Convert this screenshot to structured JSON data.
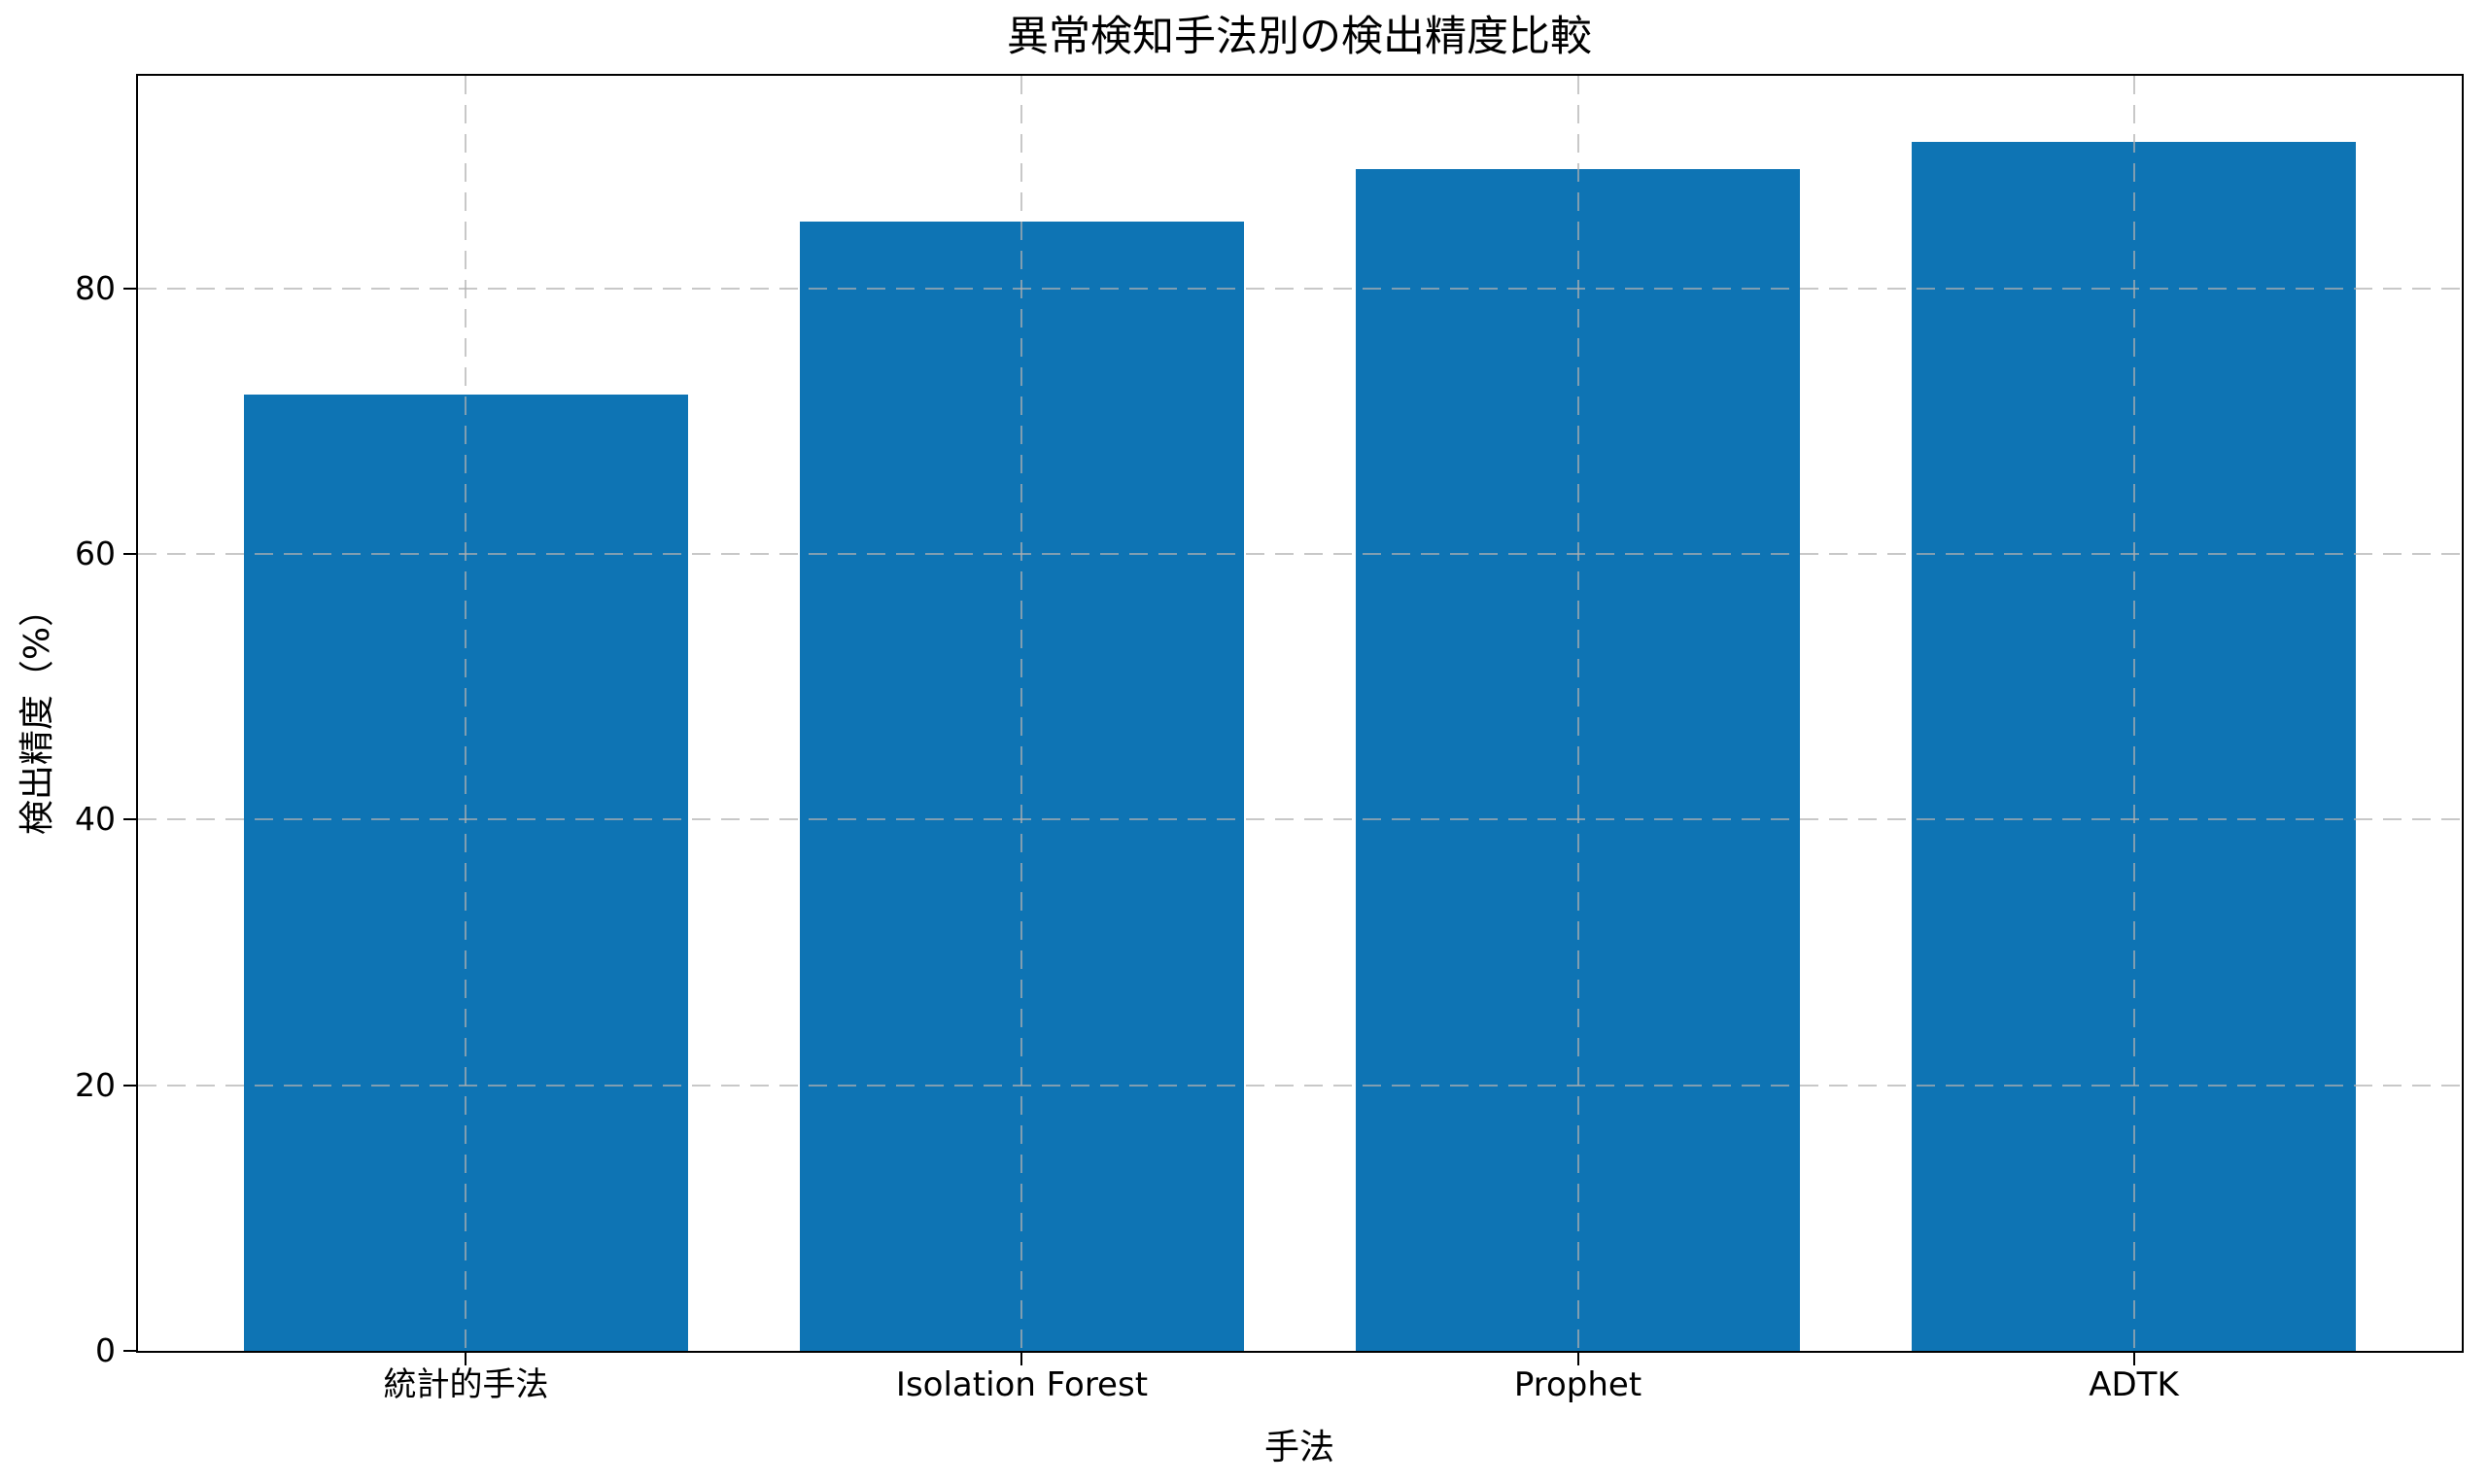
{
  "chart_data": {
    "type": "bar",
    "title": "異常検知手法別の検出精度比較",
    "xlabel": "手法",
    "ylabel": "検出精度（%）",
    "categories": [
      "統計的手法",
      "Isolation Forest",
      "Prophet",
      "ADTK"
    ],
    "values": [
      72,
      85,
      89,
      91
    ],
    "series": [
      {
        "name": "検出精度",
        "values": [
          72,
          85,
          89,
          91
        ]
      }
    ],
    "yticks": [
      0,
      20,
      40,
      60,
      80
    ],
    "ytick_labels": [
      "0",
      "20",
      "40",
      "60",
      "80"
    ],
    "ylim": [
      0,
      96
    ],
    "xlim_units": [
      -0.59,
      3.59
    ],
    "bar_width_units": 0.8,
    "bar_color": "#0e74b4",
    "background_color": "#ffffff",
    "spine_color": "#000000",
    "grid": {
      "axis": "both",
      "linestyle": "dashed",
      "color": "#b0b0b0",
      "alpha": 0.7,
      "drawn_over_bars": true
    },
    "legend_position": "none"
  }
}
